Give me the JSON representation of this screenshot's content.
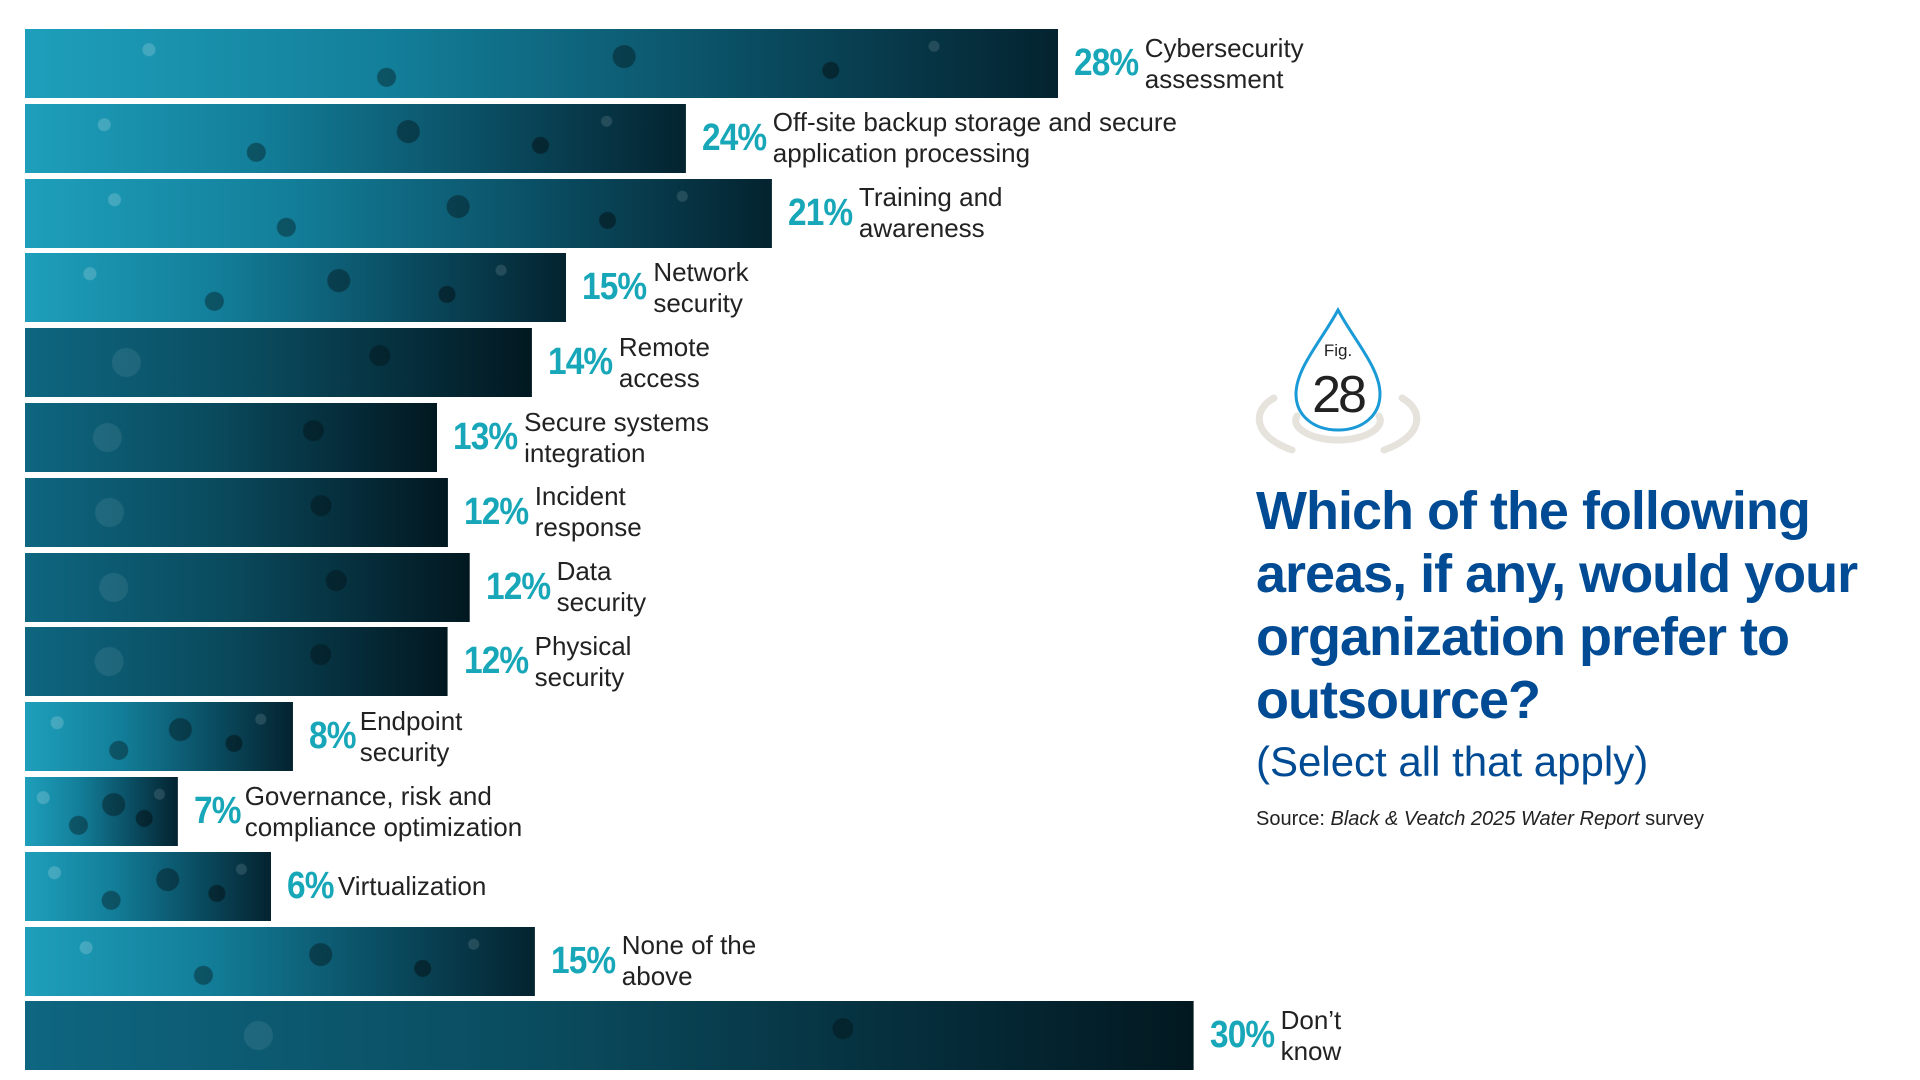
{
  "chart_data": {
    "type": "bar",
    "orientation": "horizontal",
    "categories": [
      "Cybersecurity assessment",
      "Off-site backup storage and secure application processing",
      "Training and awareness",
      "Network security",
      "Remote access",
      "Secure systems integration",
      "Incident response",
      "Data security",
      "Physical security",
      "Endpoint security",
      "Governance, risk and compliance optimization",
      "Virtualization",
      "None of the above",
      "Don’t know"
    ],
    "values": [
      28,
      24,
      21,
      15,
      14,
      13,
      12,
      12,
      12,
      8,
      7,
      6,
      15,
      30
    ],
    "value_labels": [
      "28%",
      "24%",
      "21%",
      "15%",
      "14%",
      "13%",
      "12%",
      "12%",
      "12%",
      "8%",
      "7%",
      "6%",
      "15%",
      "30%"
    ],
    "unit": "%",
    "grid": false,
    "colors": {
      "bar": "#137f9a",
      "value_label": "#17a7b8",
      "title": "#004b93",
      "drop_outline": "#1a9ad6"
    }
  },
  "figure": {
    "fig_label": "Fig.",
    "fig_number": "28"
  },
  "title": "Which of the following areas, if any, would your organization prefer to outsource?",
  "subtitle": "(Select all that apply)",
  "source": {
    "prefix": "Source: ",
    "publication": "Black & Veatch 2025 Water Report",
    "suffix": " survey"
  }
}
